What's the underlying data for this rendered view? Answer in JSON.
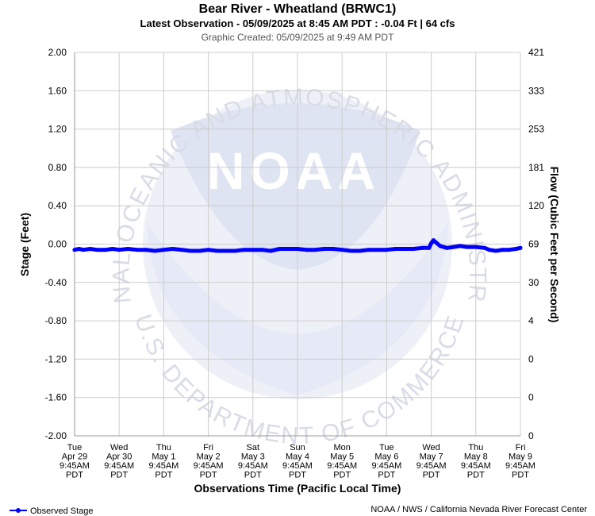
{
  "chart_data": {
    "type": "line",
    "title": "Bear River - Wheatland (BRWC1)",
    "subtitle": "Latest Observation - 05/09/2025 at 8:45 AM PDT : -0.04 Ft | 64 cfs",
    "created": "Graphic Created: 05/09/2025 at 9:49 AM PDT",
    "ylabel": "Stage (Feet)",
    "y2label": "Flow (Cubic Feet per Second)",
    "xlabel": "Observations Time (Pacific Local Time)",
    "ylim": [
      -2.0,
      2.0
    ],
    "xlim": [
      0,
      10
    ],
    "y_ticks": [
      "2.00",
      "1.60",
      "1.20",
      "0.80",
      "0.40",
      "0.00",
      "-0.40",
      "-0.80",
      "-1.20",
      "-1.60",
      "-2.00"
    ],
    "y2_ticks": [
      "421",
      "333",
      "253",
      "181",
      "120",
      "69",
      "30",
      "4",
      "0",
      "0",
      "0"
    ],
    "x_ticks": [
      [
        "Tue",
        "Apr 29",
        "9:45AM",
        "PDT"
      ],
      [
        "Wed",
        "Apr 30",
        "9:45AM",
        "PDT"
      ],
      [
        "Thu",
        "May 1",
        "9:45AM",
        "PDT"
      ],
      [
        "Fri",
        "May 2",
        "9:45AM",
        "PDT"
      ],
      [
        "Sat",
        "May 3",
        "9:45AM",
        "PDT"
      ],
      [
        "Sun",
        "May 4",
        "9:45AM",
        "PDT"
      ],
      [
        "Mon",
        "May 5",
        "9:45AM",
        "PDT"
      ],
      [
        "Tue",
        "May 6",
        "9:45AM",
        "PDT"
      ],
      [
        "Wed",
        "May 7",
        "9:45AM",
        "PDT"
      ],
      [
        "Thu",
        "May 8",
        "9:45AM",
        "PDT"
      ],
      [
        "Fri",
        "May 9",
        "9:45AM",
        "PDT"
      ]
    ],
    "grid": true,
    "legend_position": "bottom-left",
    "series": [
      {
        "name": "Observed Stage",
        "color": "#0000ff",
        "x": [
          0.0,
          0.1,
          0.2,
          0.35,
          0.5,
          0.7,
          0.85,
          1.0,
          1.2,
          1.4,
          1.6,
          1.8,
          2.0,
          2.2,
          2.4,
          2.6,
          2.8,
          3.0,
          3.2,
          3.4,
          3.6,
          3.8,
          4.0,
          4.2,
          4.4,
          4.6,
          4.8,
          5.0,
          5.2,
          5.4,
          5.6,
          5.8,
          6.0,
          6.2,
          6.4,
          6.6,
          6.8,
          7.0,
          7.2,
          7.4,
          7.6,
          7.8,
          7.95,
          8.0,
          8.05,
          8.1,
          8.2,
          8.35,
          8.5,
          8.65,
          8.8,
          9.0,
          9.2,
          9.3,
          9.45,
          9.6,
          9.75,
          9.9,
          10.0
        ],
        "y": [
          -0.06,
          -0.05,
          -0.06,
          -0.05,
          -0.06,
          -0.06,
          -0.05,
          -0.06,
          -0.05,
          -0.06,
          -0.06,
          -0.07,
          -0.06,
          -0.05,
          -0.06,
          -0.07,
          -0.07,
          -0.06,
          -0.07,
          -0.07,
          -0.07,
          -0.06,
          -0.06,
          -0.06,
          -0.07,
          -0.05,
          -0.05,
          -0.05,
          -0.06,
          -0.06,
          -0.05,
          -0.05,
          -0.06,
          -0.07,
          -0.07,
          -0.06,
          -0.06,
          -0.06,
          -0.05,
          -0.05,
          -0.05,
          -0.04,
          -0.04,
          0.01,
          0.04,
          0.02,
          -0.02,
          -0.04,
          -0.03,
          -0.02,
          -0.03,
          -0.03,
          -0.04,
          -0.06,
          -0.07,
          -0.06,
          -0.06,
          -0.05,
          -0.04
        ]
      }
    ]
  },
  "legend": {
    "label": "Observed Stage"
  },
  "footer": {
    "credit": "NOAA / NWS / California Nevada River Forecast Center"
  },
  "watermark": {
    "top_text": "NATIONAL OCEANIC AND ATMOSPHERIC ADMINISTRATION",
    "bottom_text": "U.S. DEPARTMENT OF COMMERCE",
    "logo_text": "NOAA"
  },
  "colors": {
    "series": "#0000ff",
    "grid": "#cccccc",
    "watermark_light": "#eef0f8",
    "watermark_mid": "#dfe4f2"
  }
}
